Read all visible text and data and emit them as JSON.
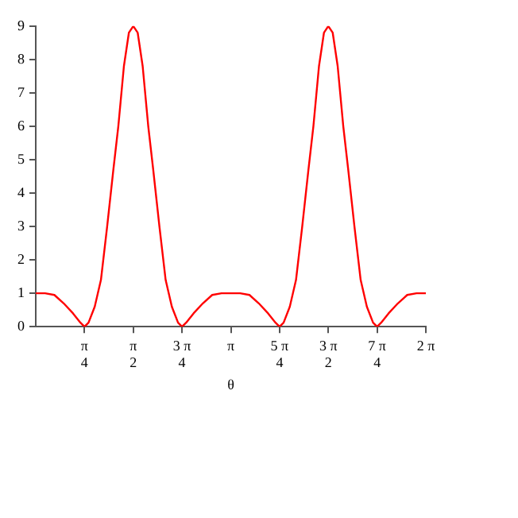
{
  "chart_data": {
    "type": "line",
    "xlabel": "θ",
    "x": [
      0,
      0.15,
      0.3,
      0.45,
      0.6,
      0.72,
      0.785,
      0.85,
      0.95,
      1.05,
      1.15,
      1.25,
      1.33,
      1.42,
      1.5,
      1.571,
      1.642,
      1.722,
      1.812,
      1.892,
      1.992,
      2.092,
      2.192,
      2.292,
      2.356,
      2.422,
      2.542,
      2.692,
      2.842,
      2.992,
      3.142,
      3.292,
      3.442,
      3.592,
      3.742,
      3.862,
      3.927,
      3.992,
      4.092,
      4.192,
      4.292,
      4.392,
      4.472,
      4.562,
      4.642,
      4.712,
      4.783,
      4.863,
      4.953,
      5.033,
      5.133,
      5.233,
      5.333,
      5.433,
      5.498,
      5.563,
      5.683,
      5.833,
      5.983,
      6.133,
      6.283
    ],
    "series": [
      {
        "color": "#ff0000",
        "values": [
          1,
          1,
          0.95,
          0.7,
          0.4,
          0.12,
          0,
          0.12,
          0.6,
          1.4,
          3,
          4.7,
          6,
          7.8,
          8.8,
          9,
          8.8,
          7.8,
          6,
          4.7,
          3,
          1.4,
          0.6,
          0.12,
          0,
          0.12,
          0.4,
          0.7,
          0.95,
          1,
          1,
          1,
          0.95,
          0.7,
          0.4,
          0.12,
          0,
          0.12,
          0.6,
          1.4,
          3,
          4.7,
          6,
          7.8,
          8.8,
          9,
          8.8,
          7.8,
          6,
          4.7,
          3,
          1.4,
          0.6,
          0.12,
          0,
          0.12,
          0.4,
          0.7,
          0.95,
          1,
          1
        ]
      }
    ],
    "xlim": [
      0,
      6.283
    ],
    "xticks": [
      {
        "value": 0.785,
        "label": "π\n4"
      },
      {
        "value": 1.571,
        "label": "π\n2"
      },
      {
        "value": 2.356,
        "label": "3 π\n4"
      },
      {
        "value": 3.142,
        "label": "π"
      },
      {
        "value": 3.927,
        "label": "5 π\n4"
      },
      {
        "value": 4.712,
        "label": "3 π\n2"
      },
      {
        "value": 5.498,
        "label": "7 π\n4"
      },
      {
        "value": 6.283,
        "label": "2 π"
      }
    ],
    "ylim": [
      0,
      9
    ],
    "yticks": [
      0,
      1,
      2,
      3,
      4,
      5,
      6,
      7,
      8,
      9
    ],
    "grid": false,
    "legend": false,
    "marker": "none",
    "line_style": "solid"
  }
}
